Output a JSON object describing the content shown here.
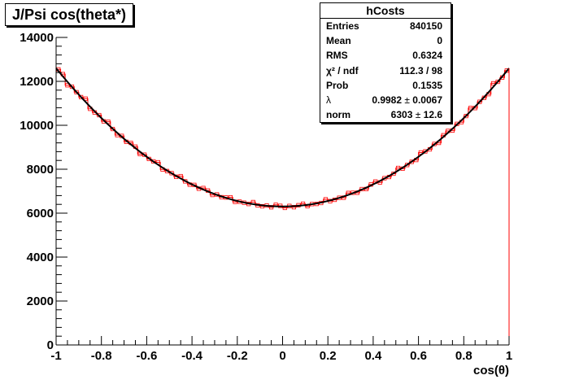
{
  "chart_data": {
    "type": "histogram",
    "title": "J/Psi cos(theta*)",
    "xlabel": "cos(θ)",
    "ylabel": "",
    "xlim": [
      -1,
      1
    ],
    "ylim": [
      0,
      14000
    ],
    "x_ticks": [
      "-1",
      "-0.8",
      "-0.6",
      "-0.4",
      "-0.2",
      "0",
      "0.2",
      "0.4",
      "0.6",
      "0.8",
      "1"
    ],
    "y_ticks": [
      "0",
      "2000",
      "4000",
      "6000",
      "8000",
      "10000",
      "12000",
      "14000"
    ],
    "bins": 100,
    "histogram_color": "#ff0000",
    "fit_color": "#000000",
    "fit_function": {
      "form": "norm*(1+lambda*x^2)",
      "norm": 6303,
      "lambda": 0.9982
    },
    "stats": {
      "name": "hCosts",
      "rows": [
        {
          "key": "Entries",
          "value": "840150"
        },
        {
          "key": "Mean",
          "value": "0"
        },
        {
          "key": "RMS",
          "value": "0.6324"
        },
        {
          "key": "χ² / ndf",
          "value": "112.3 / 98"
        },
        {
          "key": "Prob",
          "value": "0.1535"
        },
        {
          "key": "λ",
          "value": "0.9982",
          "error": "0.0067"
        },
        {
          "key": "norm",
          "value": "6303",
          "error": "12.6"
        }
      ]
    },
    "grid": false,
    "legend": "top-right"
  }
}
